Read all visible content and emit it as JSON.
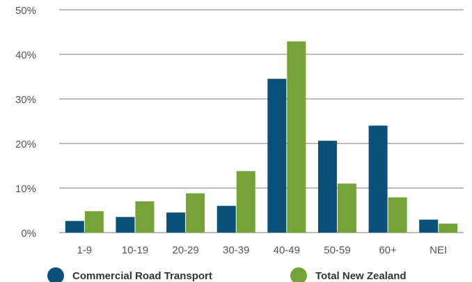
{
  "chart_data": {
    "type": "bar",
    "categories": [
      "1-9",
      "10-19",
      "20-29",
      "30-39",
      "40-49",
      "50-59",
      "60+",
      "NEI"
    ],
    "series": [
      {
        "name": "Commercial Road Transport",
        "color": "#0b5079",
        "values": [
          2.6,
          3.5,
          4.5,
          6.0,
          34.5,
          20.6,
          24.0,
          2.9
        ]
      },
      {
        "name": "Total New Zealand",
        "color": "#76a337",
        "values": [
          4.8,
          7.0,
          8.8,
          13.8,
          42.9,
          11.0,
          7.9,
          2.0
        ]
      }
    ],
    "title": "",
    "xlabel": "",
    "ylabel": "",
    "ylim": [
      0,
      50
    ],
    "yticks": [
      "0%",
      "10%",
      "20%",
      "30%",
      "40%",
      "50%"
    ],
    "grid": true,
    "gridline_color": "#777777",
    "legend_position": "bottom"
  }
}
